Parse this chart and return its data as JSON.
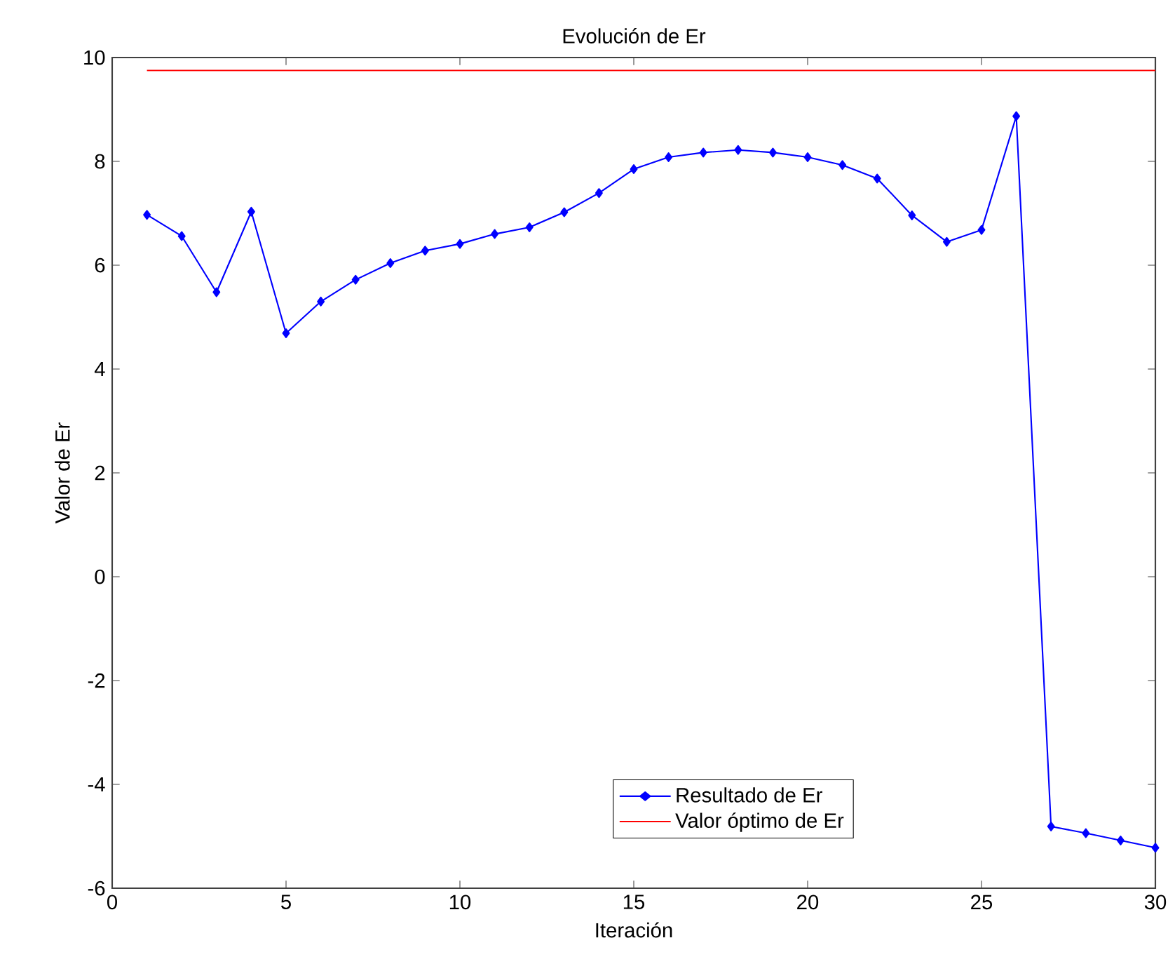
{
  "chart_data": {
    "type": "line",
    "title": "Evolución de Er",
    "xlabel": "Iteración",
    "ylabel": "Valor de Er",
    "x": [
      1,
      2,
      3,
      4,
      5,
      6,
      7,
      8,
      9,
      10,
      11,
      12,
      13,
      14,
      15,
      16,
      17,
      18,
      19,
      20,
      21,
      22,
      23,
      24,
      25,
      26,
      27,
      28,
      29,
      30
    ],
    "series": [
      {
        "name": "Resultado de Er",
        "color": "#0000ff",
        "marker": "diamond",
        "values": [
          6.97,
          6.56,
          5.48,
          7.03,
          4.69,
          5.3,
          5.72,
          6.04,
          6.28,
          6.41,
          6.6,
          6.73,
          7.02,
          7.39,
          7.85,
          8.08,
          8.17,
          8.22,
          8.17,
          8.08,
          7.93,
          7.67,
          6.96,
          6.45,
          6.68,
          8.87,
          -4.81,
          -4.94,
          -5.08,
          -5.22
        ]
      },
      {
        "name": "Valor óptimo de Er",
        "color": "#ff0000",
        "marker": "none",
        "x": [
          1,
          30
        ],
        "values": [
          9.75,
          9.75
        ]
      }
    ],
    "xlim": [
      0,
      30
    ],
    "xticks": [
      0,
      5,
      10,
      15,
      20,
      25,
      30
    ],
    "ylim": [
      -6,
      10
    ],
    "yticks": [
      -6,
      -4,
      -2,
      0,
      2,
      4,
      6,
      8,
      10
    ],
    "grid": false,
    "legend": "bottom right",
    "line_style": "solid"
  }
}
